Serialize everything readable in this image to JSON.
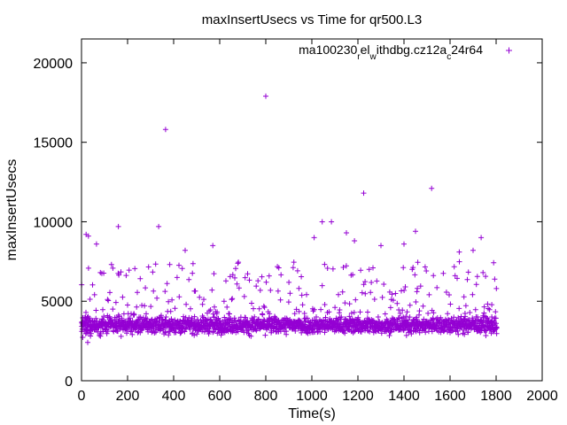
{
  "chart_data": {
    "type": "scatter",
    "title": "maxInsertUsecs vs Time for qr500.L3",
    "xlabel": "Time(s)",
    "ylabel": "maxInsertUsecs",
    "xlim": [
      0,
      2000
    ],
    "ylim": [
      0,
      21500
    ],
    "grid": false,
    "legend_position": "top-right",
    "x_ticks": [
      "0",
      "200",
      "400",
      "600",
      "800",
      "1000",
      "1200",
      "1400",
      "1600",
      "1800",
      "2000"
    ],
    "y_ticks": [
      "0",
      "5000",
      "10000",
      "15000",
      "20000"
    ],
    "legend": {
      "parts": [
        {
          "text": "ma100230",
          "sub": false
        },
        {
          "text": "r",
          "sub": true
        },
        {
          "text": "el",
          "sub": false
        },
        {
          "text": "w",
          "sub": true
        },
        {
          "text": "ithdbg.cz12a",
          "sub": false
        },
        {
          "text": "c",
          "sub": true
        },
        {
          "text": "24r64",
          "sub": false
        }
      ]
    },
    "series": [
      {
        "name": "ma100230_rel_withdbg.cz12a_c24r64",
        "color": "#9400d3",
        "marker": "+",
        "x_range": [
          0,
          1800
        ],
        "typical_band": [
          2800,
          4200
        ],
        "spread_band": [
          4200,
          7500
        ],
        "outliers": [
          {
            "x": 20,
            "y": 9200
          },
          {
            "x": 30,
            "y": 9100
          },
          {
            "x": 65,
            "y": 8600
          },
          {
            "x": 160,
            "y": 9700
          },
          {
            "x": 335,
            "y": 9700
          },
          {
            "x": 365,
            "y": 15800
          },
          {
            "x": 450,
            "y": 8200
          },
          {
            "x": 570,
            "y": 8500
          },
          {
            "x": 800,
            "y": 17900
          },
          {
            "x": 1010,
            "y": 9000
          },
          {
            "x": 1045,
            "y": 10000
          },
          {
            "x": 1085,
            "y": 10000
          },
          {
            "x": 1150,
            "y": 9300
          },
          {
            "x": 1185,
            "y": 8800
          },
          {
            "x": 1225,
            "y": 11800
          },
          {
            "x": 1300,
            "y": 8500
          },
          {
            "x": 1400,
            "y": 8600
          },
          {
            "x": 1450,
            "y": 9400
          },
          {
            "x": 1520,
            "y": 12100
          },
          {
            "x": 1640,
            "y": 8100
          },
          {
            "x": 1700,
            "y": 8200
          },
          {
            "x": 1735,
            "y": 9000
          }
        ]
      }
    ]
  }
}
